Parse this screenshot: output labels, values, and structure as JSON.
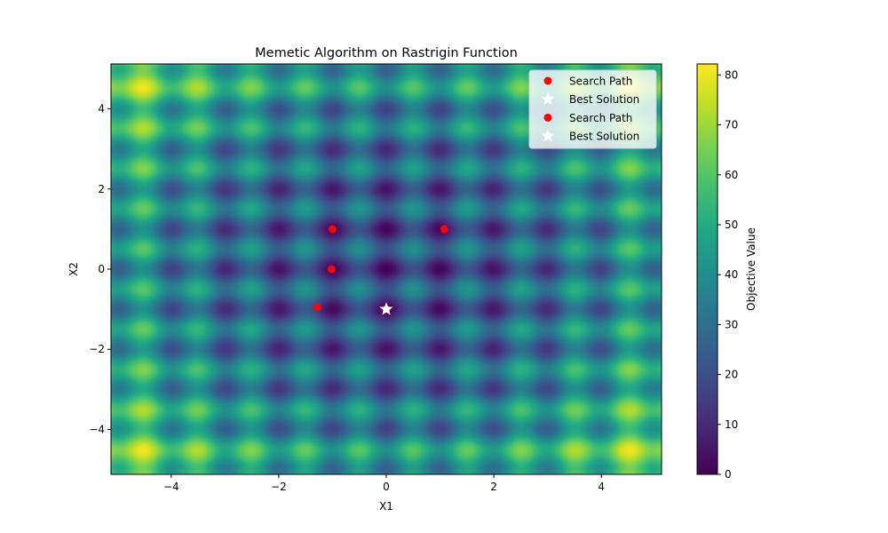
{
  "chart_data": {
    "type": "heatmap",
    "title": "Memetic Algorithm on Rastrigin Function",
    "xlabel": "X1",
    "ylabel": "X2",
    "xlim": [
      -5.12,
      5.12
    ],
    "ylim": [
      -5.12,
      5.12
    ],
    "x_ticks": [
      -4,
      -2,
      0,
      2,
      4
    ],
    "y_ticks": [
      -4,
      -2,
      0,
      2,
      4
    ],
    "function": "Rastrigin",
    "colormap": "viridis",
    "colorbar": {
      "label": "Objective Value",
      "range": [
        0,
        82.2
      ],
      "ticks": [
        0,
        10,
        20,
        30,
        40,
        50,
        60,
        70,
        80
      ]
    },
    "series": [
      {
        "name": "Search Path",
        "marker": "circle",
        "color": "#ff0000",
        "points": [
          {
            "x": -1.0,
            "y": 1.0
          },
          {
            "x": 1.08,
            "y": 1.0
          },
          {
            "x": -1.02,
            "y": 0.0
          },
          {
            "x": -1.28,
            "y": -0.95
          },
          {
            "x": 0.0,
            "y": -1.0
          }
        ]
      },
      {
        "name": "Best Solution",
        "marker": "star",
        "color": "#ffffff",
        "points": [
          {
            "x": 0.0,
            "y": -1.0
          }
        ]
      }
    ],
    "legend": {
      "position": "upper right",
      "entries": [
        {
          "label": "Search Path",
          "marker": "circle",
          "color": "#ff0000"
        },
        {
          "label": "Best Solution",
          "marker": "star",
          "color": "#ffffff"
        },
        {
          "label": "Search Path",
          "marker": "circle",
          "color": "#ff0000"
        },
        {
          "label": "Best Solution",
          "marker": "star",
          "color": "#ffffff"
        }
      ]
    }
  }
}
